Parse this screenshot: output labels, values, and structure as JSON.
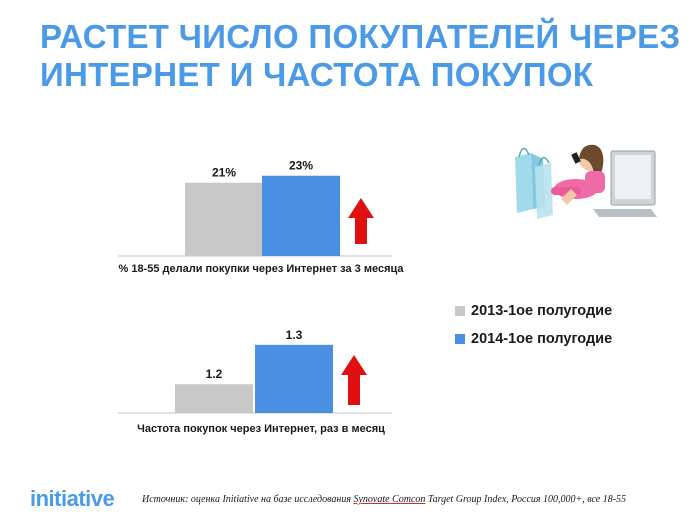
{
  "title": {
    "line1": "РАСТЕТ ЧИСЛО ПОКУПАТЕЛЕЙ ЧЕРЕЗ",
    "line2": "ИНТЕРНЕТ И ЧАСТОТА ПОКУПОК"
  },
  "legend": {
    "items": [
      {
        "label": "2013-1ое полугодие",
        "color": "#c8c8c8"
      },
      {
        "label": "2014-1ое полугодие",
        "color": "#4a90e2"
      }
    ]
  },
  "arrow_color": "#e01010",
  "chart_data": [
    {
      "type": "bar",
      "xlabel": "% 18-55 делали покупки через Интернет за 3 месяца",
      "categories": [
        "2013-1ое полугодие",
        "2014-1ое полугодие"
      ],
      "values": [
        21,
        23
      ],
      "value_labels": [
        "21%",
        "23%"
      ],
      "ylim": [
        0,
        23.5
      ],
      "legend_position": "right",
      "grid": false
    },
    {
      "type": "bar",
      "xlabel": "Частота покупок через Интернет, раз в месяц",
      "categories": [
        "2013-1ое полугодие",
        "2014-1ое полугодие"
      ],
      "values": [
        1.2,
        1.3
      ],
      "value_labels": [
        "1.2",
        "1.3"
      ],
      "ylim": [
        1.127,
        1.33
      ],
      "legend_position": "right",
      "grid": false
    }
  ],
  "footer": {
    "logo": "initiative",
    "source_prefix": "Источник:  оценка Initiative на базе исследования ",
    "source_underlined": "Synovate  Comcon",
    "source_suffix": " Target Group Index,  Россия 100,000+, все 18-55"
  }
}
